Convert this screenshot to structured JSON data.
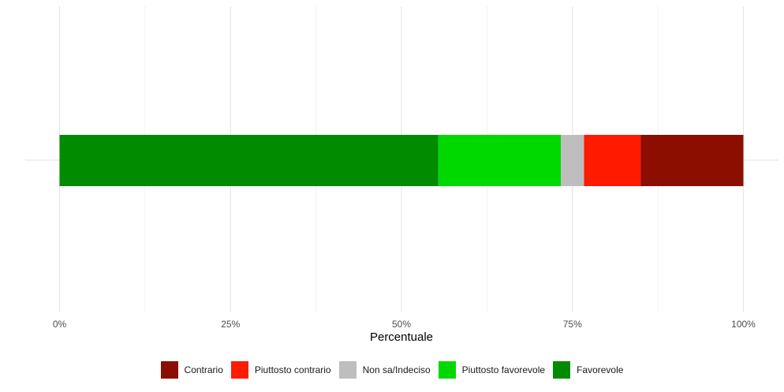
{
  "chart_data": {
    "type": "bar",
    "orientation": "horizontal",
    "stacked": true,
    "xlabel": "Percentuale",
    "ylabel": "",
    "xlim": [
      0,
      100
    ],
    "x_ticks": [
      {
        "value": 0,
        "label": "0%"
      },
      {
        "value": 25,
        "label": "25%"
      },
      {
        "value": 50,
        "label": "50%"
      },
      {
        "value": 75,
        "label": "75%"
      },
      {
        "value": 100,
        "label": "100%"
      }
    ],
    "grid": true,
    "legend_position": "bottom",
    "series": [
      {
        "name": "Favorevole",
        "value": 55.4,
        "color": "#008B00"
      },
      {
        "name": "Piuttosto favorevole",
        "value": 17.9,
        "color": "#00D900"
      },
      {
        "name": "Non sa/Indeciso",
        "value": 3.4,
        "color": "#BEBEBE"
      },
      {
        "name": "Piuttosto contrario",
        "value": 8.3,
        "color": "#FF1A00"
      },
      {
        "name": "Contrario",
        "value": 15.0,
        "color": "#8B0E00"
      }
    ],
    "legend_order": [
      "Contrario",
      "Piuttosto contrario",
      "Non sa/Indeciso",
      "Piuttosto favorevole",
      "Favorevole"
    ]
  }
}
